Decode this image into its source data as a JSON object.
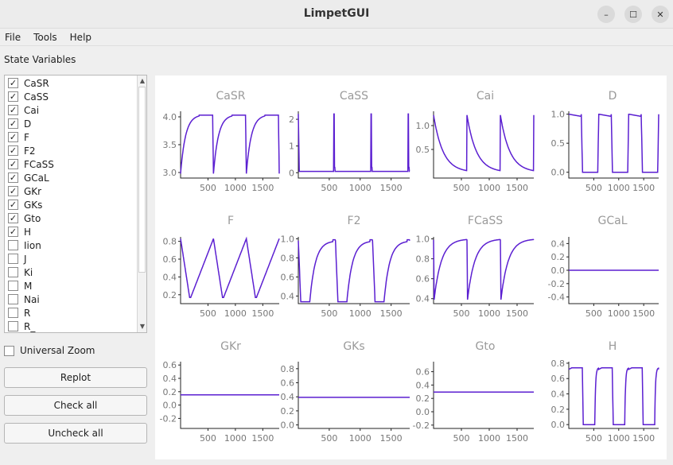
{
  "window": {
    "title": "LimpetGUI"
  },
  "titlebar_buttons": [
    "–",
    "☐",
    "✕"
  ],
  "menu": [
    "File",
    "Tools",
    "Help"
  ],
  "state_variables_label": "State Variables",
  "state_variables": [
    {
      "name": "CaSR",
      "checked": true
    },
    {
      "name": "CaSS",
      "checked": true
    },
    {
      "name": "Cai",
      "checked": true
    },
    {
      "name": "D",
      "checked": true
    },
    {
      "name": "F",
      "checked": true
    },
    {
      "name": "F2",
      "checked": true
    },
    {
      "name": "FCaSS",
      "checked": true
    },
    {
      "name": "GCaL",
      "checked": true
    },
    {
      "name": "GKr",
      "checked": true
    },
    {
      "name": "GKs",
      "checked": true
    },
    {
      "name": "Gto",
      "checked": true
    },
    {
      "name": "H",
      "checked": true
    },
    {
      "name": "Iion",
      "checked": false
    },
    {
      "name": "J",
      "checked": false
    },
    {
      "name": "Ki",
      "checked": false
    },
    {
      "name": "M",
      "checked": false
    },
    {
      "name": "Nai",
      "checked": false
    },
    {
      "name": "R",
      "checked": false
    },
    {
      "name": "R_",
      "checked": false
    }
  ],
  "universal_zoom": {
    "label": "Universal Zoom",
    "checked": false
  },
  "buttons": {
    "replot": "Replot",
    "check_all": "Check all",
    "uncheck_all": "Uncheck all"
  },
  "colors": {
    "trace": "#5b1fd1"
  },
  "chart_data": [
    {
      "type": "line",
      "title": "CaSR",
      "xlim": [
        0,
        1800
      ],
      "ylim": [
        2.9,
        4.1
      ],
      "yticks": [
        3.0,
        3.5,
        4.0
      ],
      "xticks": [
        500,
        1000,
        1500
      ],
      "shape": "casr"
    },
    {
      "type": "line",
      "title": "CaSS",
      "xlim": [
        0,
        1800
      ],
      "ylim": [
        -0.2,
        2.3
      ],
      "yticks": [
        0,
        1,
        2
      ],
      "xticks": [
        500,
        1000,
        1500
      ],
      "shape": "cass"
    },
    {
      "type": "line",
      "title": "Cai",
      "xlim": [
        0,
        1800
      ],
      "ylim": [
        -0.1,
        1.3
      ],
      "yticks": [
        0.5,
        1.0
      ],
      "xticks": [
        500,
        1000,
        1500
      ],
      "shape": "cai"
    },
    {
      "type": "line",
      "title": "D",
      "xlim": [
        0,
        1800
      ],
      "ylim": [
        -0.1,
        1.05
      ],
      "yticks": [
        0,
        0.5,
        1.0
      ],
      "xticks": [
        500,
        1000,
        1500
      ],
      "shape": "d"
    },
    {
      "type": "line",
      "title": "F",
      "xlim": [
        0,
        1800
      ],
      "ylim": [
        0.1,
        0.85
      ],
      "yticks": [
        0.2,
        0.4,
        0.6,
        0.8
      ],
      "xticks": [
        500,
        1000,
        1500
      ],
      "shape": "f"
    },
    {
      "type": "line",
      "title": "F2",
      "xlim": [
        0,
        1800
      ],
      "ylim": [
        0.32,
        1.02
      ],
      "yticks": [
        0.4,
        0.6,
        0.8,
        1.0
      ],
      "xticks": [
        500,
        1000,
        1500
      ],
      "shape": "f2"
    },
    {
      "type": "line",
      "title": "FCaSS",
      "xlim": [
        0,
        1800
      ],
      "ylim": [
        0.35,
        1.02
      ],
      "yticks": [
        0.4,
        0.6,
        0.8,
        1.0
      ],
      "xticks": [
        500,
        1000,
        1500
      ],
      "shape": "fcass"
    },
    {
      "type": "line",
      "title": "GCaL",
      "xlim": [
        0,
        1800
      ],
      "ylim": [
        -0.5,
        0.5
      ],
      "yticks": [
        -0.4,
        -0.2,
        0,
        0.2,
        0.4
      ],
      "xticks": [
        500,
        1000,
        1500
      ],
      "shape": "flat",
      "value": 0
    },
    {
      "type": "line",
      "title": "GKr",
      "xlim": [
        0,
        1800
      ],
      "ylim": [
        -0.35,
        0.65
      ],
      "yticks": [
        -0.2,
        0,
        0.2,
        0.4,
        0.6
      ],
      "xticks": [
        500,
        1000,
        1500
      ],
      "shape": "flat",
      "value": 0.153
    },
    {
      "type": "line",
      "title": "GKs",
      "xlim": [
        0,
        1800
      ],
      "ylim": [
        -0.05,
        0.9
      ],
      "yticks": [
        0,
        0.2,
        0.4,
        0.6,
        0.8
      ],
      "xticks": [
        500,
        1000,
        1500
      ],
      "shape": "flat",
      "value": 0.392
    },
    {
      "type": "line",
      "title": "Gto",
      "xlim": [
        0,
        1800
      ],
      "ylim": [
        -0.25,
        0.75
      ],
      "yticks": [
        -0.2,
        0,
        0.2,
        0.4,
        0.6
      ],
      "xticks": [
        500,
        1000,
        1500
      ],
      "shape": "flat",
      "value": 0.294
    },
    {
      "type": "line",
      "title": "H",
      "xlim": [
        0,
        1800
      ],
      "ylim": [
        -0.05,
        0.82
      ],
      "yticks": [
        0,
        0.2,
        0.4,
        0.6,
        0.8
      ],
      "xticks": [
        500,
        1000,
        1500
      ],
      "shape": "h"
    }
  ]
}
